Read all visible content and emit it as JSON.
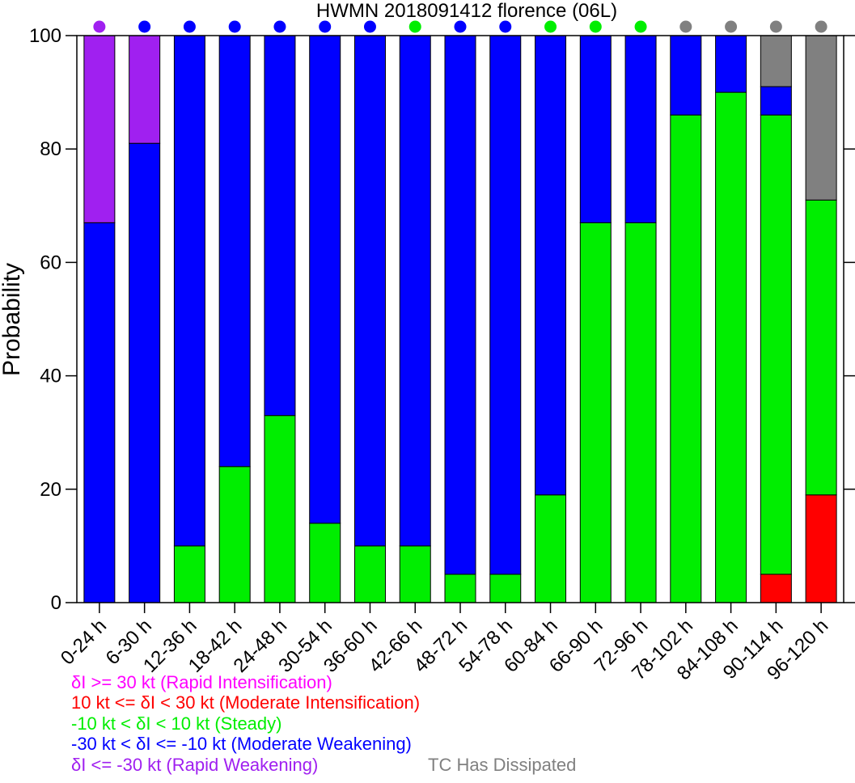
{
  "chart_data": {
    "type": "bar",
    "stacked": true,
    "title": "HWMN 2018091412 florence (06L)",
    "xlabel": "",
    "ylabel": "Probability",
    "ylim": [
      0,
      100
    ],
    "yticks": [
      0,
      20,
      40,
      60,
      80,
      100
    ],
    "grid": false,
    "legend_placement": "bottom-left",
    "categories": [
      "0-24 h",
      "6-30 h",
      "12-36 h",
      "18-42 h",
      "24-48 h",
      "30-54 h",
      "36-60 h",
      "42-66 h",
      "48-72 h",
      "54-78 h",
      "60-84 h",
      "66-90 h",
      "72-96 h",
      "78-102 h",
      "84-108 h",
      "90-114 h",
      "96-120 h"
    ],
    "series": [
      {
        "key": "ri",
        "name": "δI >= 30 kt (Rapid Intensification)",
        "color": "#ff00ff",
        "values": [
          0,
          0,
          0,
          0,
          0,
          0,
          0,
          0,
          0,
          0,
          0,
          0,
          0,
          0,
          0,
          0,
          0
        ]
      },
      {
        "key": "mi",
        "name": "10 kt <= δI < 30 kt (Moderate Intensification)",
        "color": "#ff0000",
        "values": [
          0,
          0,
          0,
          0,
          0,
          0,
          0,
          0,
          0,
          0,
          0,
          0,
          0,
          0,
          0,
          5,
          19
        ]
      },
      {
        "key": "st",
        "name": "-10 kt < δI < 10 kt (Steady)",
        "color": "#00ee00",
        "values": [
          0,
          0,
          10,
          24,
          33,
          14,
          10,
          10,
          5,
          5,
          19,
          67,
          67,
          86,
          90,
          81,
          52
        ]
      },
      {
        "key": "mw",
        "name": "-30 kt < δI <= -10 kt (Moderate Weakening)",
        "color": "#0000ff",
        "values": [
          67,
          81,
          90,
          76,
          67,
          86,
          90,
          90,
          95,
          95,
          81,
          33,
          33,
          14,
          10,
          5,
          0
        ]
      },
      {
        "key": "rw",
        "name": "δI <= -30 kt (Rapid Weakening)",
        "color": "#a020f0",
        "values": [
          33,
          19,
          0,
          0,
          0,
          0,
          0,
          0,
          0,
          0,
          0,
          0,
          0,
          0,
          0,
          0,
          0
        ]
      },
      {
        "key": "tc",
        "name": "TC Has Dissipated",
        "color": "#808080",
        "values": [
          0,
          0,
          0,
          0,
          0,
          0,
          0,
          0,
          0,
          0,
          0,
          0,
          0,
          0,
          0,
          9,
          29
        ]
      }
    ],
    "dominant_category_markers": [
      "rw",
      "mw",
      "mw",
      "mw",
      "mw",
      "mw",
      "mw",
      "st",
      "mw",
      "mw",
      "st",
      "st",
      "st",
      "tc",
      "tc",
      "tc",
      "tc"
    ]
  }
}
